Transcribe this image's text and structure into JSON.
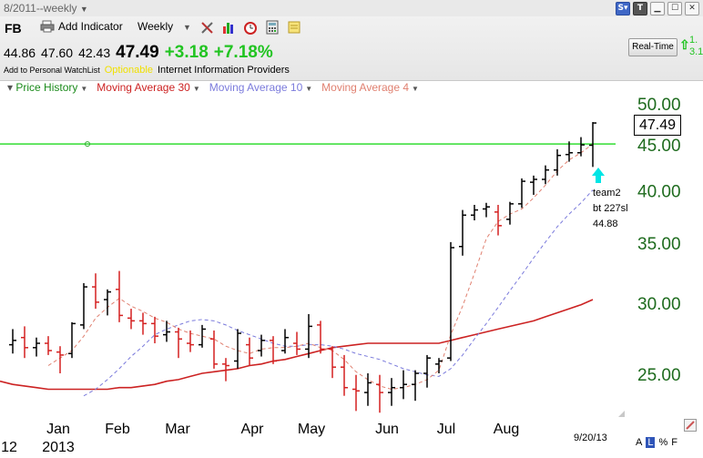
{
  "window": {
    "title": "8/2011--weekly"
  },
  "toolbar": {
    "symbol": "FB",
    "add_indicator_label": "Add Indicator",
    "period": "Weekly"
  },
  "quote": {
    "open": "44.86",
    "high": "47.60",
    "low": "42.43",
    "last": "47.49",
    "change": "+3.18",
    "change_pct": "+7.18%"
  },
  "info": {
    "watchlist_label": "Add to Personal WatchList",
    "optionable": "Optionable",
    "industry": "Internet Information Providers"
  },
  "realtime": {
    "label": "Real-Time",
    "value1": "1.",
    "value2": "3.1"
  },
  "legend": [
    {
      "label": "Price History",
      "color": "#1a8a1a"
    },
    {
      "label": "Moving Average 30",
      "color": "#cc2222"
    },
    {
      "label": "Moving Average 10",
      "color": "#7b7bdc"
    },
    {
      "label": "Moving Average 4",
      "color": "#e08070"
    }
  ],
  "last_price_label": "47.49",
  "annotation": [
    "team2",
    "bt 227sl",
    "44.88"
  ],
  "date_stamp": "9/20/13",
  "footer": {
    "a": "A",
    "l": "L",
    "pct": "%",
    "f": "F"
  },
  "colors": {
    "up_bar": "#000000",
    "down_bar": "#d42020",
    "ma30": "#cc2222",
    "ma10": "#7b7bdc",
    "ma4": "#e08070",
    "hline": "#33dd33",
    "axis_text": "#1e6b1e",
    "arrow": "#00e5e5"
  },
  "chart_data": {
    "type": "ohlc",
    "period": "weekly",
    "y_scale": "log",
    "ylim": [
      22.5,
      52
    ],
    "y_ticks": [
      "50.00",
      "45.00",
      "40.00",
      "35.00",
      "30.00",
      "25.00"
    ],
    "x_month_labels": [
      "Jan",
      "Feb",
      "Mar",
      "Apr",
      "May",
      "Jun",
      "Jul",
      "Aug"
    ],
    "x_year_labels": [
      "12",
      "2013"
    ],
    "horizontal_line": 45.0,
    "bars": [
      {
        "date": "2012-11-30",
        "o": 26.9,
        "h": 28.0,
        "l": 26.3,
        "c": 27.2
      },
      {
        "date": "2012-12-07",
        "o": 27.4,
        "h": 28.2,
        "l": 26.0,
        "c": 26.7
      },
      {
        "date": "2012-12-14",
        "o": 26.7,
        "h": 27.4,
        "l": 26.1,
        "c": 27.0
      },
      {
        "date": "2012-12-21",
        "o": 27.0,
        "h": 27.5,
        "l": 26.2,
        "c": 26.5
      },
      {
        "date": "2012-12-28",
        "o": 26.4,
        "h": 26.8,
        "l": 25.0,
        "c": 26.2
      },
      {
        "date": "2013-01-04",
        "o": 26.3,
        "h": 28.5,
        "l": 26.0,
        "c": 28.4
      },
      {
        "date": "2013-01-11",
        "o": 28.3,
        "h": 31.5,
        "l": 28.0,
        "c": 31.2
      },
      {
        "date": "2013-01-18",
        "o": 31.2,
        "h": 32.3,
        "l": 29.5,
        "c": 30.0
      },
      {
        "date": "2013-01-25",
        "o": 30.2,
        "h": 31.0,
        "l": 29.0,
        "c": 30.8
      },
      {
        "date": "2013-02-01",
        "o": 31.0,
        "h": 32.5,
        "l": 28.5,
        "c": 29.0
      },
      {
        "date": "2013-02-08",
        "o": 28.8,
        "h": 29.5,
        "l": 28.0,
        "c": 28.6
      },
      {
        "date": "2013-02-15",
        "o": 28.6,
        "h": 29.2,
        "l": 27.6,
        "c": 28.4
      },
      {
        "date": "2013-02-22",
        "o": 28.4,
        "h": 28.9,
        "l": 27.0,
        "c": 27.5
      },
      {
        "date": "2013-03-01",
        "o": 27.6,
        "h": 28.6,
        "l": 27.1,
        "c": 27.8
      },
      {
        "date": "2013-03-08",
        "o": 27.8,
        "h": 28.1,
        "l": 26.0,
        "c": 27.3
      },
      {
        "date": "2013-03-15",
        "o": 27.0,
        "h": 27.9,
        "l": 26.4,
        "c": 26.9
      },
      {
        "date": "2013-03-22",
        "o": 26.9,
        "h": 28.3,
        "l": 26.7,
        "c": 28.0
      },
      {
        "date": "2013-03-29",
        "o": 27.3,
        "h": 27.9,
        "l": 25.3,
        "c": 25.6
      },
      {
        "date": "2013-04-05",
        "o": 25.6,
        "h": 26.0,
        "l": 24.5,
        "c": 25.5
      },
      {
        "date": "2013-04-12",
        "o": 25.8,
        "h": 28.0,
        "l": 25.3,
        "c": 27.7
      },
      {
        "date": "2013-04-19",
        "o": 26.9,
        "h": 27.4,
        "l": 25.5,
        "c": 26.0
      },
      {
        "date": "2013-04-26",
        "o": 26.5,
        "h": 27.6,
        "l": 26.1,
        "c": 27.2
      },
      {
        "date": "2013-05-03",
        "o": 27.2,
        "h": 27.5,
        "l": 25.6,
        "c": 25.8
      },
      {
        "date": "2013-05-10",
        "o": 26.5,
        "h": 28.0,
        "l": 26.3,
        "c": 27.4
      },
      {
        "date": "2013-05-17",
        "o": 27.0,
        "h": 27.8,
        "l": 26.2,
        "c": 26.6
      },
      {
        "date": "2013-05-24",
        "o": 26.6,
        "h": 29.1,
        "l": 26.0,
        "c": 28.2
      },
      {
        "date": "2013-05-31",
        "o": 28.3,
        "h": 28.6,
        "l": 26.3,
        "c": 26.6
      },
      {
        "date": "2013-06-07",
        "o": 26.6,
        "h": 26.8,
        "l": 24.7,
        "c": 25.4
      },
      {
        "date": "2013-06-14",
        "o": 25.4,
        "h": 26.2,
        "l": 23.6,
        "c": 24.1
      },
      {
        "date": "2013-06-21",
        "o": 24.0,
        "h": 24.9,
        "l": 22.7,
        "c": 23.9
      },
      {
        "date": "2013-06-28",
        "o": 23.8,
        "h": 25.0,
        "l": 23.0,
        "c": 24.4
      },
      {
        "date": "2013-07-05",
        "o": 24.3,
        "h": 24.9,
        "l": 22.6,
        "c": 23.8
      },
      {
        "date": "2013-07-12",
        "o": 23.8,
        "h": 24.7,
        "l": 23.0,
        "c": 24.1
      },
      {
        "date": "2013-07-19",
        "o": 24.1,
        "h": 25.2,
        "l": 23.4,
        "c": 24.3
      },
      {
        "date": "2013-07-26",
        "o": 24.3,
        "h": 25.2,
        "l": 23.3,
        "c": 25.0
      },
      {
        "date": "2013-08-02",
        "o": 25.0,
        "h": 26.2,
        "l": 24.1,
        "c": 26.0
      },
      {
        "date": "2013-08-09",
        "o": 25.6,
        "h": 26.0,
        "l": 25.0,
        "c": 25.8
      },
      {
        "date": "2013-08-16",
        "o": 26.0,
        "h": 35.0,
        "l": 25.8,
        "c": 34.5
      },
      {
        "date": "2013-08-23",
        "o": 34.6,
        "h": 38.0,
        "l": 33.8,
        "c": 37.5
      },
      {
        "date": "2013-08-30",
        "o": 37.5,
        "h": 38.5,
        "l": 37.0,
        "c": 38.0
      },
      {
        "date": "2013-09-06",
        "o": 38.1,
        "h": 38.7,
        "l": 37.3,
        "c": 38.3
      },
      {
        "date": "2013-09-13",
        "o": 37.8,
        "h": 38.5,
        "l": 35.6,
        "c": 36.5
      },
      {
        "date": "2013-09-20",
        "o": 37.1,
        "h": 38.8,
        "l": 36.6,
        "c": 38.6
      },
      {
        "date": "2013-09-27",
        "o": 38.6,
        "h": 41.2,
        "l": 38.2,
        "c": 40.9
      },
      {
        "date": "2013-10-04",
        "o": 40.8,
        "h": 41.5,
        "l": 39.5,
        "c": 41.1
      },
      {
        "date": "2013-10-11",
        "o": 41.1,
        "h": 42.6,
        "l": 40.6,
        "c": 42.1
      },
      {
        "date": "2013-10-18",
        "o": 42.1,
        "h": 44.4,
        "l": 41.5,
        "c": 43.7
      },
      {
        "date": "2013-10-25",
        "o": 43.8,
        "h": 45.3,
        "l": 43.0,
        "c": 44.0
      },
      {
        "date": "2013-11-01",
        "o": 44.0,
        "h": 45.8,
        "l": 43.6,
        "c": 44.9
      },
      {
        "date": "2013-11-08",
        "o": 44.86,
        "h": 47.6,
        "l": 42.43,
        "c": 47.49
      }
    ],
    "series": [
      {
        "name": "Moving Average 30",
        "values": [
          24.3,
          24.2,
          24.1,
          24.0,
          24.0,
          24.0,
          24.0,
          24.0,
          24.0,
          24.1,
          24.1,
          24.2,
          24.3,
          24.5,
          24.6,
          24.8,
          25.0,
          25.1,
          25.2,
          25.3,
          25.5,
          25.6,
          25.8,
          25.9,
          26.1,
          26.3,
          26.5,
          26.7,
          26.8,
          26.9,
          27.0,
          27.0,
          27.0,
          27.0,
          27.0,
          27.0,
          27.0,
          27.2,
          27.4,
          27.6,
          27.8,
          28.0,
          28.2,
          28.4,
          28.6,
          28.9,
          29.2,
          29.5,
          29.8,
          30.2
        ]
      },
      {
        "name": "Moving Average 10",
        "values": [
          null,
          null,
          null,
          null,
          null,
          null,
          23.6,
          24.0,
          24.6,
          25.3,
          26.1,
          26.8,
          27.6,
          28.0,
          28.3,
          28.6,
          28.7,
          28.6,
          28.3,
          27.9,
          27.6,
          27.3,
          27.0,
          26.8,
          26.8,
          26.9,
          26.9,
          26.8,
          26.6,
          26.3,
          26.1,
          25.9,
          25.6,
          25.3,
          25.1,
          24.9,
          24.8,
          25.3,
          26.2,
          27.3,
          28.4,
          29.6,
          30.9,
          32.2,
          33.6,
          35.0,
          36.4,
          37.6,
          38.7,
          40.0
        ]
      },
      {
        "name": "Moving Average 4",
        "values": [
          null,
          null,
          null,
          25.5,
          26.0,
          26.5,
          27.5,
          28.8,
          29.6,
          30.3,
          29.7,
          29.3,
          28.8,
          28.5,
          28.0,
          27.7,
          27.5,
          27.3,
          26.8,
          26.5,
          26.3,
          26.6,
          26.7,
          26.7,
          26.8,
          27.0,
          26.7,
          26.5,
          25.9,
          25.1,
          24.6,
          24.2,
          24.0,
          24.1,
          24.3,
          24.6,
          25.2,
          27.6,
          29.7,
          32.3,
          35.3,
          36.9,
          37.6,
          38.1,
          39.2,
          40.5,
          42.0,
          43.2,
          44.0,
          45.0
        ]
      }
    ]
  }
}
